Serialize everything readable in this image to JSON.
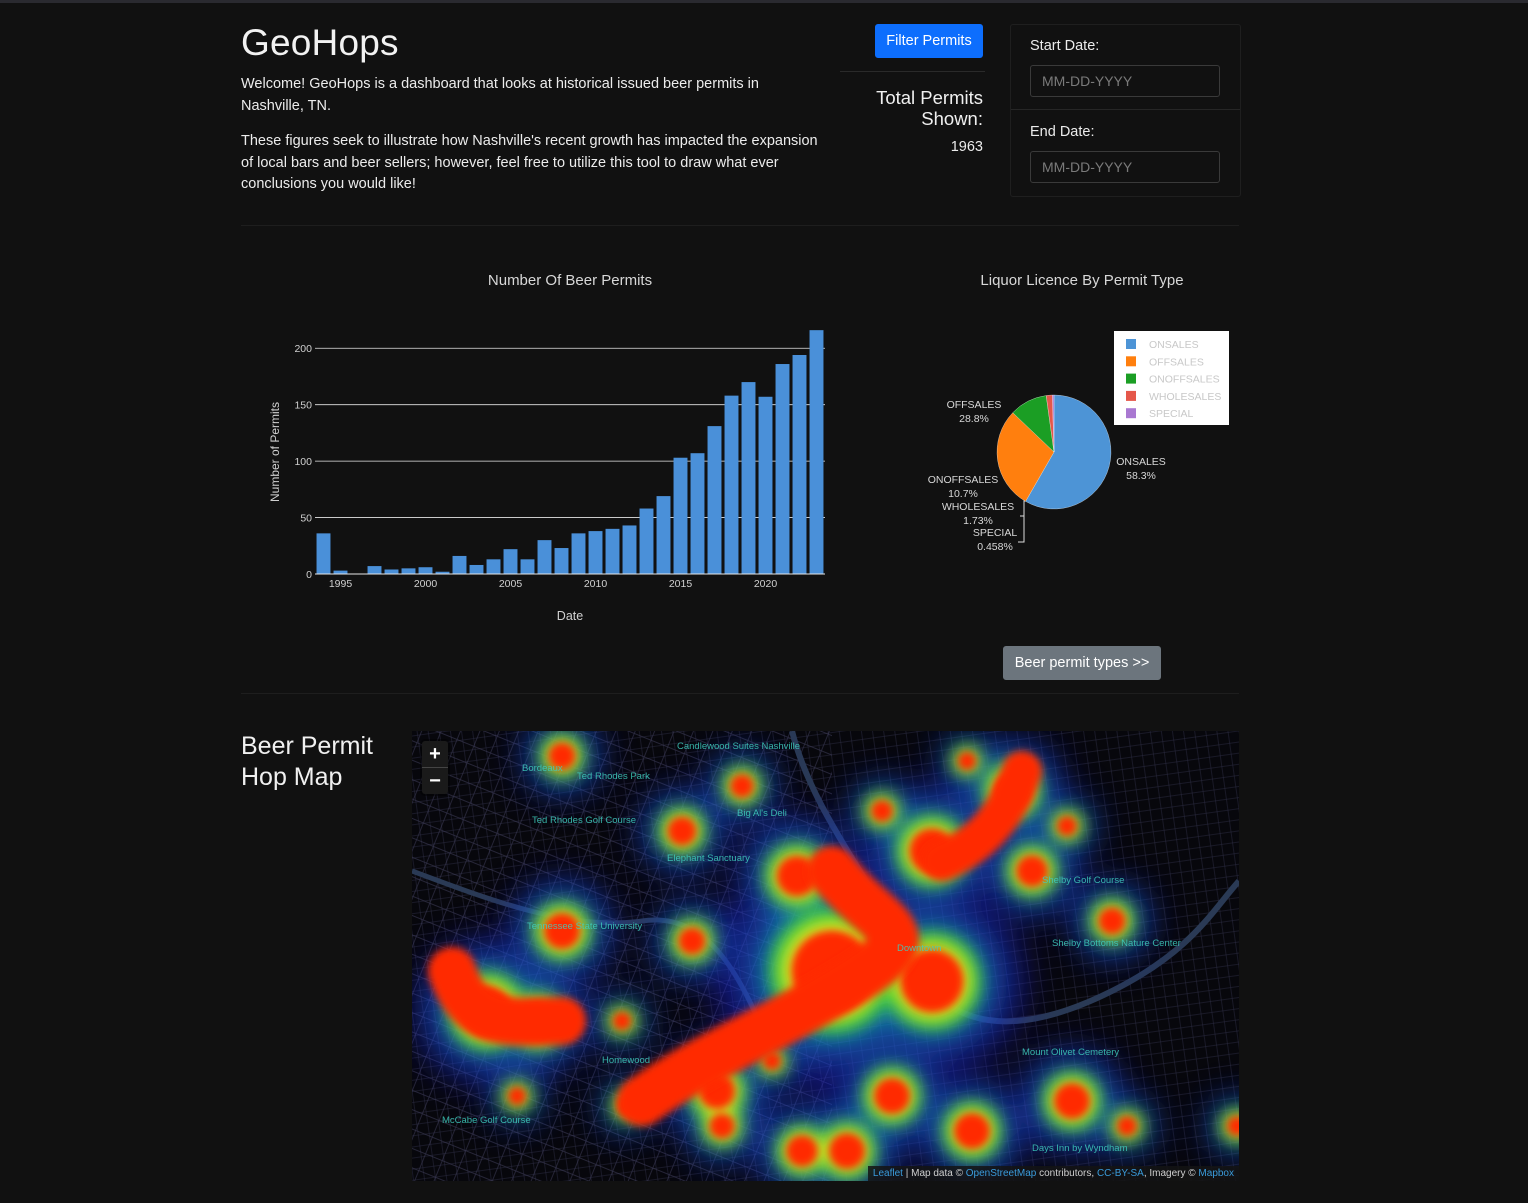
{
  "header": {
    "title": "GeoHops",
    "intro_1": "Welcome! GeoHops is a dashboard that looks at historical issued beer permits in Nashville, TN.",
    "intro_2": "These figures seek to illustrate how Nashville's recent growth has impacted the expansion of local bars and beer sellers; however, feel free to utilize this tool to draw what ever conclusions you would like!"
  },
  "filter": {
    "button_label": "Filter Permits",
    "total_label": "Total Permits Shown:",
    "total_value": "1963",
    "start_label": "Start Date:",
    "start_placeholder": "MM-DD-YYYY",
    "end_label": "End Date:",
    "end_placeholder": "MM-DD-YYYY"
  },
  "secondary_button": "Beer permit types >>",
  "map": {
    "title_line1": "Beer Permit",
    "title_line2": "Hop Map",
    "zoom_in": "+",
    "zoom_out": "−",
    "attribution_leaflet": "Leaflet",
    "attribution_mid": "| Map data ©",
    "attribution_osm": "OpenStreetMap",
    "attribution_contrib": "contributors,",
    "attribution_ccbysa": "CC-BY-SA",
    "attribution_imagery": ", Imagery ©",
    "attribution_mapbox": "Mapbox",
    "place_labels": [
      "Candlewood Suites Nashville",
      "Bordeaux",
      "Ted Rhodes Park",
      "Ted Rhodes Golf Course",
      "Big Al's Deli",
      "Elephant Sanctuary",
      "Tennessee State University",
      "Shelby Golf Course",
      "Shelby Bottoms Nature Center",
      "Downtown",
      "Mount Olivet Cemetery",
      "Homewood",
      "McCabe Golf Course",
      "Days Inn by Wyndham"
    ]
  },
  "chart_data": [
    {
      "type": "bar",
      "title": "Number Of Beer Permits",
      "xlabel": "Date",
      "ylabel": "Number of Permits",
      "x": [
        1994,
        1995,
        1996,
        1997,
        1998,
        1999,
        2000,
        2001,
        2002,
        2003,
        2004,
        2005,
        2006,
        2007,
        2008,
        2009,
        2010,
        2011,
        2012,
        2013,
        2014,
        2015,
        2016,
        2017,
        2018,
        2019,
        2020,
        2021,
        2022,
        2023
      ],
      "values": [
        36,
        3,
        0,
        7,
        4,
        5,
        6,
        2,
        16,
        8,
        13,
        22,
        13,
        30,
        23,
        36,
        38,
        40,
        43,
        58,
        69,
        103,
        107,
        131,
        158,
        170,
        157,
        186,
        194,
        216
      ],
      "xticks": [
        1995,
        2000,
        2005,
        2010,
        2015,
        2020
      ],
      "yticks": [
        0,
        50,
        100,
        150,
        200
      ],
      "ylim": [
        0,
        225
      ],
      "xlim": [
        1993.5,
        2023.5
      ],
      "grid": true,
      "color": "#4a90d9"
    },
    {
      "type": "pie",
      "title": "Liquor Licence By Permit Type",
      "labels": [
        "ONSALES",
        "OFFSALES",
        "ONOFFSALES",
        "WHOLESALES",
        "SPECIAL"
      ],
      "values": [
        58.3,
        28.8,
        10.7,
        1.73,
        0.458
      ],
      "value_labels": [
        "58.3%",
        "28.8%",
        "10.7%",
        "1.73%",
        "0.458%"
      ],
      "colors": [
        "#4d94d6",
        "#ff7f0e",
        "#1b9e24",
        "#e5574a",
        "#a978d1"
      ],
      "legend": "top-right"
    }
  ]
}
